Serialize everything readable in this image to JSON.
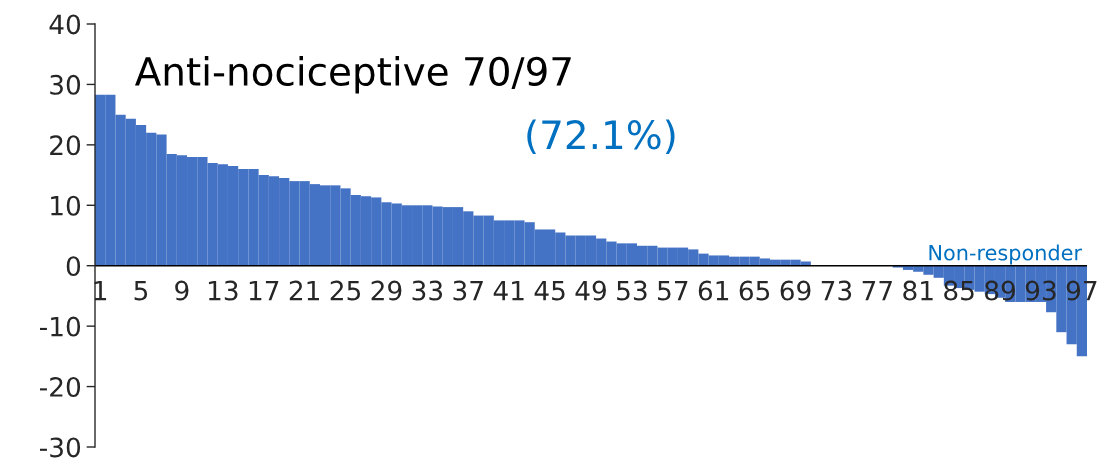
{
  "chart_data": {
    "type": "bar",
    "categories": [
      "1",
      null,
      null,
      null,
      "5",
      null,
      null,
      null,
      "9",
      null,
      null,
      null,
      "13",
      null,
      null,
      null,
      "17",
      null,
      null,
      null,
      "21",
      null,
      null,
      null,
      "25",
      null,
      null,
      null,
      "29",
      null,
      null,
      null,
      "33",
      null,
      null,
      null,
      "37",
      null,
      null,
      null,
      "41",
      null,
      null,
      null,
      "45",
      null,
      null,
      null,
      "49",
      null,
      null,
      null,
      "53",
      null,
      null,
      null,
      "57",
      null,
      null,
      null,
      "61",
      null,
      null,
      null,
      "65",
      null,
      null,
      null,
      "69",
      null,
      null,
      null,
      "73",
      null,
      null,
      null,
      "77",
      null,
      null,
      null,
      "81",
      null,
      null,
      null,
      "85",
      null,
      null,
      null,
      "89",
      null,
      null,
      null,
      "93",
      null,
      null,
      null,
      "97"
    ],
    "values": [
      28.3,
      28.3,
      25,
      24.3,
      23.3,
      22,
      21.7,
      18.5,
      18.3,
      18,
      18,
      17,
      16.8,
      16.5,
      16,
      16,
      15,
      14.8,
      14.5,
      14,
      14,
      13.5,
      13.3,
      13.3,
      12.8,
      11.7,
      11.5,
      11.3,
      10.5,
      10.3,
      10,
      10,
      10,
      9.8,
      9.7,
      9.7,
      9,
      8.3,
      8.3,
      7.5,
      7.5,
      7.5,
      7.2,
      6,
      6,
      5.5,
      5,
      5,
      5,
      4.5,
      4,
      3.7,
      3.7,
      3.3,
      3.3,
      3,
      3,
      3,
      2.7,
      2,
      1.7,
      1.7,
      1.5,
      1.5,
      1.5,
      1.2,
      1,
      1,
      1,
      0.7,
      0,
      0,
      0,
      0,
      0,
      0,
      0,
      0,
      -0.3,
      -0.7,
      -1,
      -1.5,
      -2,
      -3.3,
      -3.7,
      -4,
      -4.3,
      -4.7,
      -5.3,
      -6,
      -6,
      -6,
      -6,
      -7.7,
      -11,
      -13,
      -15
    ],
    "color": "#4472c4",
    "ylim": [
      -30,
      40
    ],
    "yticks": [
      -30,
      -20,
      -10,
      0,
      10,
      20,
      30,
      40
    ],
    "grid": false,
    "legend": false,
    "annotations": [
      "Anti-nociceptive 70/97",
      "(72.1%)",
      "Non-responder"
    ]
  }
}
